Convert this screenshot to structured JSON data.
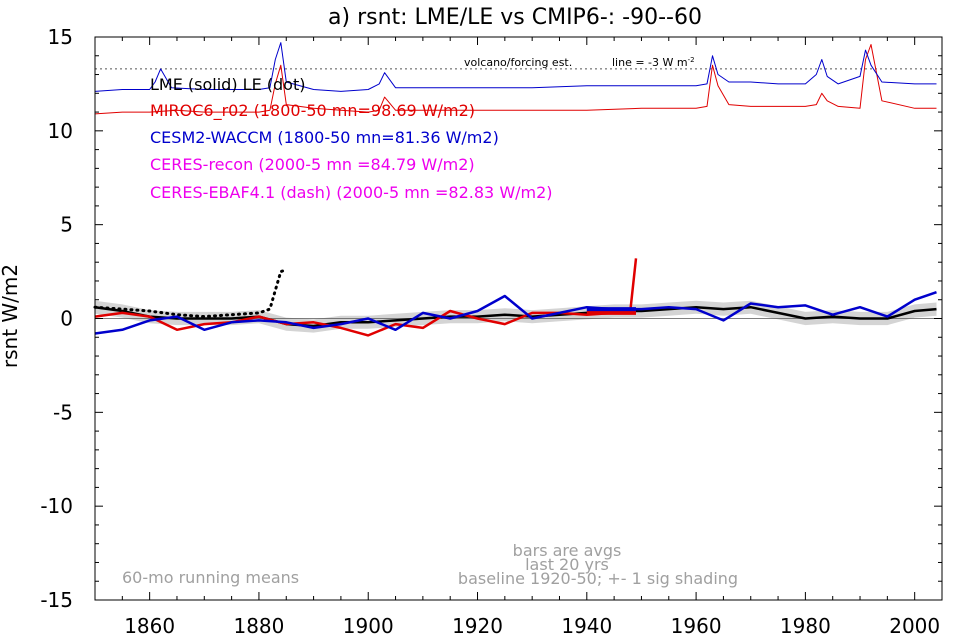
{
  "chart_data": {
    "type": "line",
    "title": "a) rsnt: LME/LE vs CMIP6-: -90--60",
    "ylabel": "rsnt W/m2",
    "xlabel": "",
    "xlim": [
      1850,
      2005
    ],
    "ylim": [
      -15,
      15
    ],
    "x_ticks": [
      1860,
      1880,
      1900,
      1920,
      1940,
      1960,
      1980,
      2000
    ],
    "y_ticks": [
      15,
      10,
      5,
      0,
      -5,
      -10,
      -15
    ],
    "legend": [
      {
        "text": "LME (solid)   LE (dot)",
        "color": "#000000"
      },
      {
        "text": "MIROC6_r02 (1800-50 mn=98.69 W/m2)",
        "color": "#e00000"
      },
      {
        "text": "CESM2-WACCM (1800-50 mn=81.36 W/m2)",
        "color": "#0000cc"
      },
      {
        "text": "CERES-recon (2000-5 mn =84.79 W/m2)",
        "color": "#ee00ee"
      },
      {
        "text": "CERES-EBAF4.1 (dash) (2000-5 mn =82.83 W/m2)",
        "color": "#ee00ee"
      }
    ],
    "annotations": {
      "volcano": "volcano/forcing est.",
      "line_label": "line = -3 W m",
      "line_label_sup": "-2",
      "running_means": "60-mo running means",
      "bars_1": "bars are avgs",
      "bars_2": "last 20 yrs",
      "baseline": "baseline 1920-50; +- 1 sig shading"
    },
    "reference_line_y": 13.3,
    "series": [
      {
        "name": "LME (solid)",
        "color": "#000000",
        "style": "solid",
        "x": [
          1850,
          1855,
          1860,
          1865,
          1870,
          1875,
          1880,
          1885,
          1890,
          1895,
          1900,
          1905,
          1910,
          1915,
          1920,
          1925,
          1930,
          1935,
          1940,
          1945,
          1950,
          1955,
          1960,
          1965,
          1970,
          1975,
          1980,
          1985,
          1990,
          1995,
          2000,
          2004
        ],
        "y": [
          0.6,
          0.4,
          0.1,
          0.0,
          0.0,
          0.0,
          0.1,
          -0.3,
          -0.4,
          -0.2,
          -0.2,
          -0.1,
          0.0,
          0.1,
          0.1,
          0.2,
          0.1,
          0.2,
          0.3,
          0.4,
          0.4,
          0.5,
          0.6,
          0.5,
          0.6,
          0.3,
          0.0,
          0.1,
          0.0,
          0.0,
          0.4,
          0.5
        ]
      },
      {
        "name": "LE (dot)",
        "color": "#000000",
        "style": "dot",
        "x": [
          1850,
          1855,
          1860,
          1865,
          1870,
          1875,
          1880,
          1882,
          1883,
          1884,
          1885
        ],
        "y": [
          0.6,
          0.5,
          0.4,
          0.2,
          0.1,
          0.2,
          0.3,
          0.5,
          1.5,
          2.5,
          2.6
        ]
      },
      {
        "name": "MIROC6_r02",
        "color": "#e00000",
        "style": "solid",
        "x": [
          1850,
          1855,
          1860,
          1865,
          1870,
          1875,
          1880,
          1885,
          1890,
          1895,
          1900,
          1905,
          1910,
          1915,
          1920,
          1925,
          1930,
          1935,
          1940,
          1945,
          1948,
          1949
        ],
        "y": [
          0.1,
          0.3,
          0.1,
          -0.6,
          -0.3,
          -0.2,
          0.1,
          -0.3,
          -0.2,
          -0.5,
          -0.9,
          -0.3,
          -0.5,
          0.4,
          0.0,
          -0.3,
          0.3,
          0.3,
          0.2,
          0.3,
          0.5,
          3.2
        ]
      },
      {
        "name": "CESM2-WACCM",
        "color": "#0000cc",
        "style": "solid",
        "x": [
          1850,
          1855,
          1860,
          1865,
          1870,
          1875,
          1880,
          1885,
          1890,
          1895,
          1900,
          1905,
          1910,
          1915,
          1920,
          1925,
          1930,
          1935,
          1940,
          1945,
          1950,
          1955,
          1960,
          1965,
          1970,
          1975,
          1980,
          1985,
          1990,
          1995,
          2000,
          2004
        ],
        "y": [
          -0.8,
          -0.6,
          -0.1,
          0.1,
          -0.6,
          -0.2,
          -0.1,
          -0.2,
          -0.5,
          -0.3,
          0.0,
          -0.6,
          0.3,
          0.0,
          0.4,
          1.2,
          0.0,
          0.3,
          0.6,
          0.5,
          0.5,
          0.6,
          0.5,
          -0.1,
          0.8,
          0.6,
          0.7,
          0.2,
          0.6,
          0.1,
          1.0,
          1.4
        ]
      },
      {
        "name": "MIROC6_r02 forcing",
        "color": "#e00000",
        "style": "thin",
        "x": [
          1850,
          1855,
          1860,
          1865,
          1870,
          1875,
          1880,
          1882,
          1883,
          1884,
          1885,
          1890,
          1895,
          1900,
          1902,
          1903,
          1905,
          1910,
          1920,
          1930,
          1940,
          1950,
          1960,
          1962,
          1963,
          1964,
          1966,
          1970,
          1975,
          1980,
          1982,
          1983,
          1984,
          1986,
          1990,
          1991,
          1992,
          1994,
          2000,
          2004
        ],
        "y": [
          10.9,
          11.0,
          11.0,
          11.1,
          11.0,
          11.0,
          11.0,
          11.1,
          12.5,
          13.5,
          11.4,
          11.2,
          11.1,
          11.0,
          11.1,
          11.8,
          11.1,
          11.1,
          11.1,
          11.1,
          11.1,
          11.2,
          11.2,
          11.3,
          13.5,
          12.4,
          11.4,
          11.3,
          11.3,
          11.3,
          11.4,
          12.0,
          11.6,
          11.3,
          11.2,
          13.8,
          14.6,
          11.6,
          11.2,
          11.2
        ]
      },
      {
        "name": "CESM2-WACCM forcing",
        "color": "#0000cc",
        "style": "thin",
        "x": [
          1850,
          1855,
          1860,
          1861,
          1862,
          1864,
          1870,
          1880,
          1882,
          1883,
          1884,
          1885,
          1890,
          1895,
          1900,
          1902,
          1903,
          1905,
          1910,
          1920,
          1930,
          1940,
          1950,
          1960,
          1962,
          1963,
          1964,
          1966,
          1970,
          1975,
          1980,
          1982,
          1983,
          1984,
          1986,
          1990,
          1991,
          1992,
          1994,
          2000,
          2004
        ],
        "y": [
          12.1,
          12.2,
          12.2,
          12.6,
          13.3,
          12.3,
          12.2,
          12.2,
          12.3,
          13.8,
          14.7,
          12.6,
          12.2,
          12.1,
          12.2,
          12.5,
          13.1,
          12.3,
          12.3,
          12.3,
          12.3,
          12.4,
          12.4,
          12.4,
          12.5,
          14.0,
          13.0,
          12.6,
          12.6,
          12.5,
          12.5,
          13.0,
          13.8,
          12.9,
          12.5,
          12.9,
          14.3,
          13.5,
          12.6,
          12.5,
          12.5
        ]
      }
    ],
    "bars": [
      {
        "name": "MIROC6_r02",
        "color": "#e00000",
        "x": [
          1940,
          1949
        ],
        "y": 0.3
      },
      {
        "name": "CESM2-WACCM",
        "color": "#0000cc",
        "x": [
          1940,
          1949
        ],
        "y": 0.5
      }
    ]
  }
}
